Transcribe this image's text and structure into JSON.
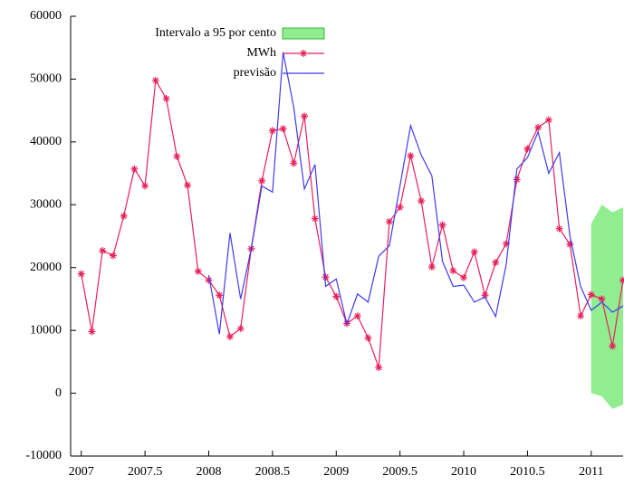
{
  "chart_data": {
    "type": "line",
    "x": [
      2007,
      2007.0833,
      2007.1667,
      2007.25,
      2007.3333,
      2007.4167,
      2007.5,
      2007.5833,
      2007.6667,
      2007.75,
      2007.8333,
      2007.9167,
      2008,
      2008.0833,
      2008.1667,
      2008.25,
      2008.3333,
      2008.4167,
      2008.5,
      2008.5833,
      2008.6667,
      2008.75,
      2008.8333,
      2008.9167,
      2009,
      2009.0833,
      2009.1667,
      2009.25,
      2009.3333,
      2009.4167,
      2009.5,
      2009.5833,
      2009.6667,
      2009.75,
      2009.8333,
      2009.9167,
      2010,
      2010.0833,
      2010.1667,
      2010.25,
      2010.3333,
      2010.4167,
      2010.5,
      2010.5833,
      2010.6667,
      2010.75,
      2010.8333,
      2010.9167,
      2011,
      2011.0833,
      2011.1667,
      2011.25
    ],
    "series": [
      {
        "name": "MWh",
        "color": "#e8205a",
        "marker": "star",
        "values": [
          19000,
          9800,
          22700,
          21900,
          28200,
          35700,
          33000,
          49800,
          46900,
          37700,
          33100,
          19400,
          18000,
          15600,
          9000,
          10300,
          23000,
          33800,
          41800,
          42100,
          36600,
          44100,
          27800,
          18500,
          15400,
          11100,
          12300,
          8800,
          4100,
          27300,
          29600,
          37800,
          30600,
          20100,
          26800,
          19500,
          18400,
          22500,
          15600,
          20800,
          23800,
          34000,
          38900,
          42300,
          43500,
          26200,
          23700,
          12300,
          15700,
          15000,
          7500,
          18000
        ]
      },
      {
        "name": "previsão",
        "color": "#3c3cf0",
        "values": [
          null,
          null,
          null,
          null,
          null,
          null,
          null,
          null,
          null,
          null,
          null,
          null,
          18800,
          9400,
          25500,
          15000,
          23000,
          33000,
          32000,
          54300,
          45500,
          32500,
          36400,
          17000,
          18200,
          11000,
          15800,
          14500,
          21800,
          23500,
          33000,
          42600,
          37900,
          34600,
          21000,
          17000,
          17200,
          14500,
          15300,
          12200,
          20500,
          35700,
          37500,
          41600,
          35000,
          38300,
          25000,
          17000,
          13200,
          14500,
          12900,
          13900
        ]
      }
    ],
    "band": {
      "name": "Intervalo a 95 por cento",
      "color": "#90ee90",
      "edge": "#3cb43c",
      "lower": [
        null,
        null,
        null,
        null,
        null,
        null,
        null,
        null,
        null,
        null,
        null,
        null,
        null,
        null,
        null,
        null,
        null,
        null,
        null,
        null,
        null,
        null,
        null,
        null,
        null,
        null,
        null,
        null,
        null,
        null,
        null,
        null,
        null,
        null,
        null,
        null,
        null,
        null,
        null,
        null,
        null,
        null,
        null,
        null,
        null,
        null,
        null,
        null,
        0,
        -500,
        -2500,
        -1800
      ],
      "upper": [
        null,
        null,
        null,
        null,
        null,
        null,
        null,
        null,
        null,
        null,
        null,
        null,
        null,
        null,
        null,
        null,
        null,
        null,
        null,
        null,
        null,
        null,
        null,
        null,
        null,
        null,
        null,
        null,
        null,
        null,
        null,
        null,
        null,
        null,
        null,
        null,
        null,
        null,
        null,
        null,
        null,
        null,
        null,
        null,
        null,
        null,
        null,
        null,
        27000,
        30000,
        28800,
        29600
      ]
    },
    "xlim": [
      2006.9167,
      2011.25
    ],
    "ylim": [
      -10000,
      60000
    ],
    "xticks": [
      2007,
      2007.5,
      2008,
      2008.5,
      2009,
      2009.5,
      2010,
      2010.5,
      2011
    ],
    "yticks": [
      -10000,
      0,
      10000,
      20000,
      30000,
      40000,
      50000,
      60000
    ],
    "grid": false
  }
}
